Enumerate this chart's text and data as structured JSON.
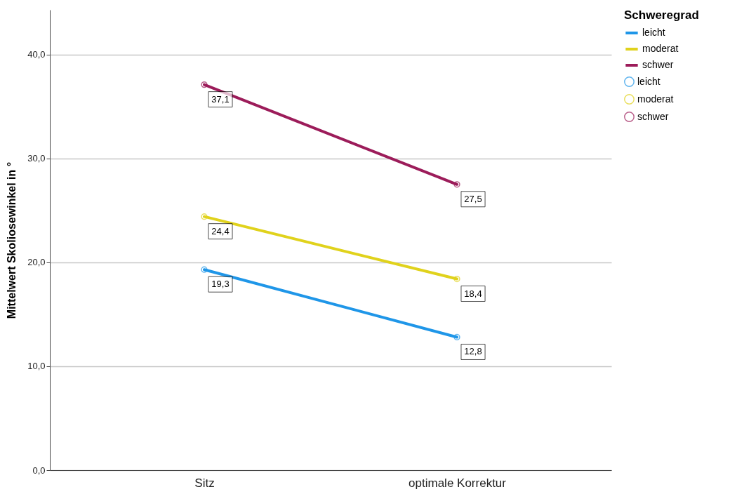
{
  "chart_data": {
    "type": "line",
    "ylabel": "Mittelwert Skoliosewinkel in °",
    "legend_title": "Schweregrad",
    "legend": "right",
    "grid": "y",
    "marker": "circle",
    "line_style": "solid",
    "categories": [
      "Sitz",
      "optimale Korrektur"
    ],
    "ylim": [
      0,
      44.3
    ],
    "yticks": [
      {
        "value": 0,
        "label": "0,0"
      },
      {
        "value": 10,
        "label": "10,0"
      },
      {
        "value": 20,
        "label": "20,0"
      },
      {
        "value": 30,
        "label": "30,0"
      },
      {
        "value": 40,
        "label": "40,0"
      }
    ],
    "series": [
      {
        "name": "leicht",
        "color": "#1f96e8",
        "values": [
          19.3,
          12.8
        ],
        "value_labels": [
          "19,3",
          "12,8"
        ]
      },
      {
        "name": "moderat",
        "color": "#e0d21c",
        "values": [
          24.4,
          18.4
        ],
        "value_labels": [
          "24,4",
          "18,4"
        ]
      },
      {
        "name": "schwer",
        "color": "#9c1c5a",
        "values": [
          37.1,
          27.5
        ],
        "value_labels": [
          "37,1",
          "27,5"
        ]
      }
    ]
  }
}
